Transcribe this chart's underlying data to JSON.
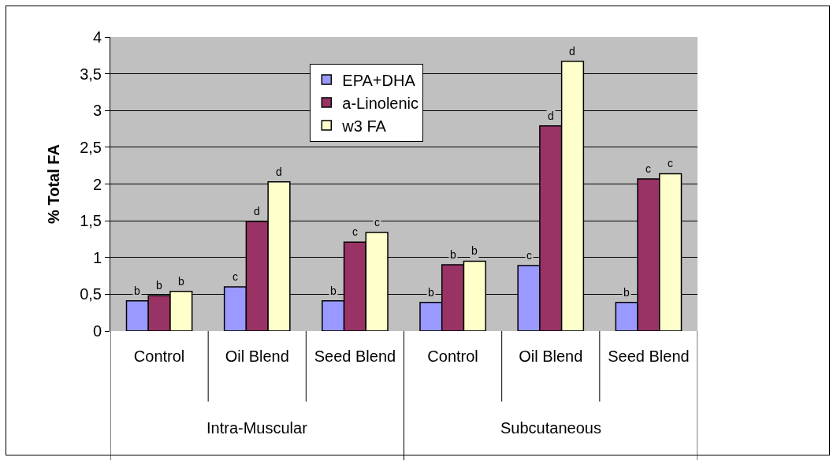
{
  "chart_data": {
    "type": "bar",
    "ylabel": "% Total FA",
    "categories": [
      "Control",
      "Oil Blend",
      "Seed Blend",
      "Control",
      "Oil Blend",
      "Seed Blend"
    ],
    "series": [
      {
        "name": "EPA+DHA",
        "color": "#9999ff",
        "values": [
          0.41,
          0.6,
          0.41,
          0.39,
          0.89,
          0.39
        ],
        "value_labels": [
          "b",
          "c",
          "b",
          "b",
          "c",
          "b"
        ]
      },
      {
        "name": "a-Linolenic",
        "color": "#993366",
        "values": [
          0.48,
          1.49,
          1.21,
          0.9,
          2.79,
          2.07
        ],
        "value_labels": [
          "b",
          "d",
          "c",
          "b",
          "d",
          "c"
        ]
      },
      {
        "name": "w3 FA",
        "color": "#ffffcc",
        "values": [
          0.54,
          2.03,
          1.34,
          0.95,
          3.67,
          2.14
        ],
        "value_labels": [
          "b",
          "d",
          "c",
          "b",
          "d",
          "c"
        ]
      }
    ],
    "annotations": [
      "Intra-Muscular",
      "Subcutaneous"
    ],
    "ylim": [
      0,
      4
    ],
    "yticks": [
      0,
      {
        "value": 0.5,
        "label": "0,5"
      },
      1,
      {
        "value": 1.5,
        "label": "1,5"
      },
      2,
      {
        "value": 2.5,
        "label": "2,5"
      },
      3,
      {
        "value": 3.5,
        "label": "3,5"
      },
      4
    ],
    "grid": "y",
    "legend": "top"
  }
}
